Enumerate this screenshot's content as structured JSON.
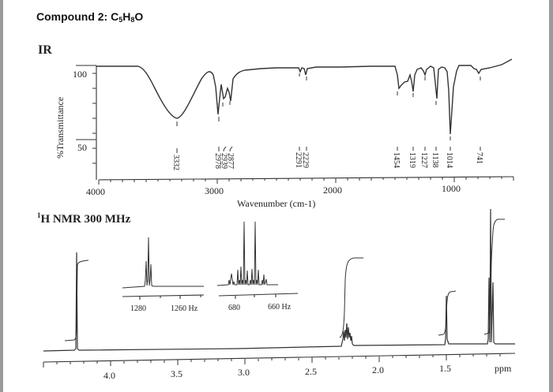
{
  "header": {
    "title_prefix": "Compound 2: C",
    "formula_parts": [
      "C",
      "5",
      "H",
      "8",
      "O"
    ]
  },
  "sections": {
    "ir_label": "IR",
    "nmr_label_sup": "1",
    "nmr_label": "H NMR 300 MHz"
  },
  "chart_data": [
    {
      "type": "line",
      "title": "IR",
      "xlabel": "Wavenumber (cm-1)",
      "ylabel": "%Transmittance",
      "x_ticks": [
        "4000",
        "3000",
        "2000",
        "1000"
      ],
      "y_ticks": [
        "100",
        "50"
      ],
      "xlim": [
        4000,
        600
      ],
      "ylim": [
        30,
        105
      ],
      "peaks_cm1": [
        3332,
        2978,
        2939,
        2877,
        2291,
        2229,
        1454,
        1319,
        1227,
        1138,
        1014,
        741
      ],
      "peak_labels": [
        "3332",
        "2978",
        "2939",
        "2877",
        "2291",
        "2229",
        "1454",
        "1319",
        "1227",
        "1138",
        "1014",
        "741"
      ],
      "approx_transmittance": {
        "3332": 68,
        "2978": 68,
        "2939": 78,
        "2877": 80,
        "2291": 97,
        "2229": 95,
        "1454": 85,
        "1319": 80,
        "1227": 95,
        "1138": 76,
        "1014": 57,
        "741": 95
      }
    },
    {
      "type": "line",
      "title": "1H NMR 300 MHz",
      "xlabel": "ppm",
      "x_ticks": [
        "4.0",
        "3.5",
        "3.0",
        "2.5",
        "2.0",
        "1.5"
      ],
      "xlim": [
        4.5,
        1.0
      ],
      "signals": [
        {
          "shift_ppm": 4.25,
          "multiplicity": "triplet",
          "integral_rel": 1
        },
        {
          "shift_ppm": 2.23,
          "multiplicity": "multiplet (qd)",
          "integral_rel": 2
        },
        {
          "shift_ppm": 1.51,
          "multiplicity": "singlet",
          "integral_rel": 1
        },
        {
          "shift_ppm": 1.12,
          "multiplicity": "triplet",
          "integral_rel": 3
        }
      ],
      "insets": [
        {
          "name": "triplet expansion",
          "x_ticks": [
            "1280",
            "1260 Hz"
          ],
          "peaks_hz": [
            1277,
            1275,
            1273
          ]
        },
        {
          "name": "multiplet expansion",
          "x_ticks": [
            "680",
            "660 Hz"
          ],
          "peaks_hz": [
            679,
            677,
            675,
            672,
            670,
            668,
            665,
            663,
            661,
            658,
            656,
            654
          ]
        }
      ]
    }
  ],
  "ir_axis": {
    "xlabel": "Wavenumber (cm-1)",
    "ylabel": "%Transmittance",
    "x_ticks": [
      "4000",
      "3000",
      "2000",
      "1000"
    ],
    "y_ticks": [
      "100",
      "50"
    ],
    "peak_labels": [
      "3332",
      "2978",
      "2939",
      "2877",
      "2291",
      "2229",
      "1454",
      "1319",
      "1227",
      "1138",
      "1014",
      "741"
    ]
  },
  "nmr_axis": {
    "unit": "ppm",
    "x_ticks": [
      "4.0",
      "3.5",
      "3.0",
      "2.5",
      "2.0",
      "1.5"
    ],
    "inset1_ticks": [
      "1280",
      "1260 Hz"
    ],
    "inset2_ticks": [
      "680",
      "660 Hz"
    ]
  }
}
